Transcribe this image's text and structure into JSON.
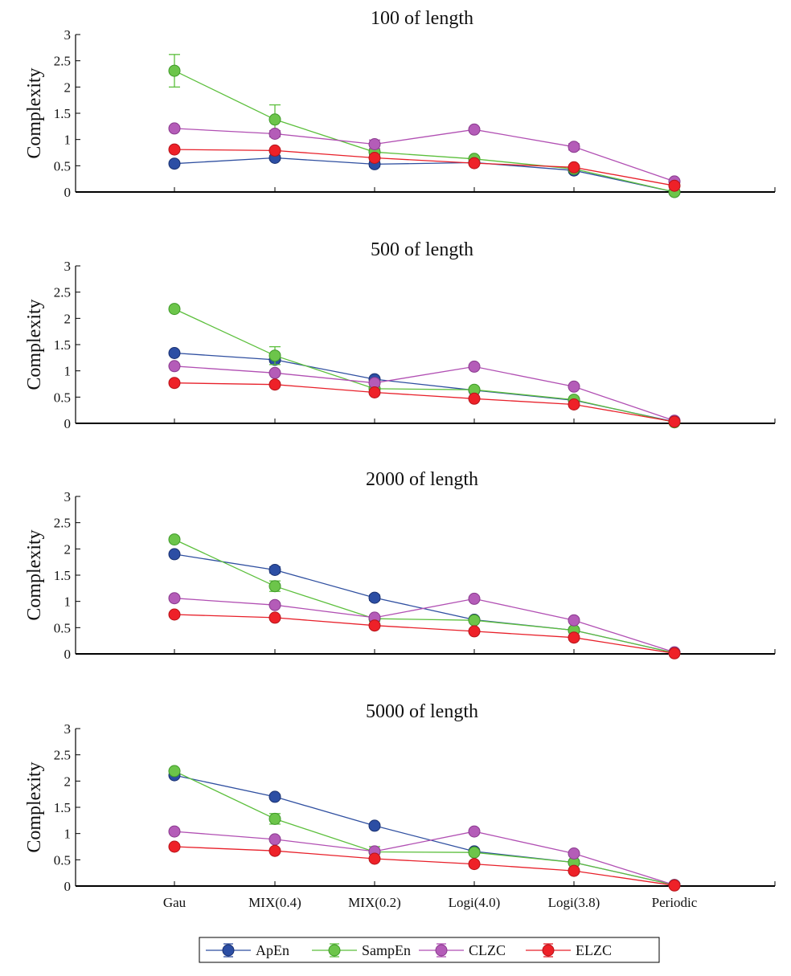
{
  "chart_data": [
    {
      "type": "line",
      "title": "100 of length",
      "ylabel": "Complexity",
      "xlabel": "",
      "categories": [
        "Gau",
        "MIX(0.4)",
        "MIX(0.2)",
        "Logi(4.0)",
        "Logi(3.8)",
        "Periodic"
      ],
      "ylim": [
        0,
        3
      ],
      "yticks": [
        "0",
        "0.5",
        "1",
        "1.5",
        "2",
        "2.5",
        "3"
      ],
      "series": [
        {
          "name": "ApEn",
          "values": [
            0.54,
            0.65,
            0.53,
            0.56,
            0.41,
            0.0
          ],
          "errors": [
            0.03,
            0.04,
            0.05,
            0.03,
            0.04,
            0.0
          ]
        },
        {
          "name": "SampEn",
          "values": [
            2.31,
            1.38,
            0.76,
            0.63,
            0.44,
            0.0
          ],
          "errors": [
            0.31,
            0.28,
            0.05,
            0.04,
            0.04,
            0.0
          ]
        },
        {
          "name": "CLZC",
          "values": [
            1.21,
            1.11,
            0.91,
            1.19,
            0.86,
            0.2
          ],
          "errors": [
            0.04,
            0.06,
            0.08,
            0.04,
            0.06,
            0.02
          ]
        },
        {
          "name": "ELZC",
          "values": [
            0.81,
            0.79,
            0.65,
            0.55,
            0.47,
            0.12
          ],
          "errors": [
            0.02,
            0.03,
            0.03,
            0.02,
            0.02,
            0.02
          ]
        }
      ]
    },
    {
      "type": "line",
      "title": "500 of length",
      "ylabel": "Complexity",
      "xlabel": "",
      "categories": [
        "Gau",
        "MIX(0.4)",
        "MIX(0.2)",
        "Logi(4.0)",
        "Logi(3.8)",
        "Periodic"
      ],
      "ylim": [
        0,
        3
      ],
      "yticks": [
        "0",
        "0.5",
        "1",
        "1.5",
        "2",
        "2.5",
        "3"
      ],
      "series": [
        {
          "name": "ApEn",
          "values": [
            1.34,
            1.21,
            0.84,
            0.63,
            0.44,
            0.03
          ],
          "errors": [
            0.02,
            0.04,
            0.03,
            0.02,
            0.02,
            0.0
          ]
        },
        {
          "name": "SampEn",
          "values": [
            2.18,
            1.29,
            0.66,
            0.64,
            0.45,
            0.02
          ],
          "errors": [
            0.03,
            0.17,
            0.03,
            0.02,
            0.02,
            0.0
          ]
        },
        {
          "name": "CLZC",
          "values": [
            1.09,
            0.96,
            0.77,
            1.08,
            0.7,
            0.05
          ],
          "errors": [
            0.02,
            0.03,
            0.03,
            0.02,
            0.02,
            0.0
          ]
        },
        {
          "name": "ELZC",
          "values": [
            0.77,
            0.74,
            0.59,
            0.47,
            0.36,
            0.03
          ],
          "errors": [
            0.01,
            0.02,
            0.02,
            0.01,
            0.01,
            0.0
          ]
        }
      ]
    },
    {
      "type": "line",
      "title": "2000 of length",
      "ylabel": "Complexity",
      "xlabel": "",
      "categories": [
        "Gau",
        "MIX(0.4)",
        "MIX(0.2)",
        "Logi(4.0)",
        "Logi(3.8)",
        "Periodic"
      ],
      "ylim": [
        0,
        3
      ],
      "yticks": [
        "0",
        "0.5",
        "1",
        "1.5",
        "2",
        "2.5",
        "3"
      ],
      "series": [
        {
          "name": "ApEn",
          "values": [
            1.9,
            1.6,
            1.07,
            0.65,
            0.45,
            0.02
          ],
          "errors": [
            0.02,
            0.06,
            0.05,
            0.01,
            0.01,
            0.0
          ]
        },
        {
          "name": "SampEn",
          "values": [
            2.18,
            1.29,
            0.67,
            0.64,
            0.45,
            0.02
          ],
          "errors": [
            0.02,
            0.1,
            0.05,
            0.01,
            0.01,
            0.0
          ]
        },
        {
          "name": "CLZC",
          "values": [
            1.06,
            0.93,
            0.69,
            1.05,
            0.64,
            0.03
          ],
          "errors": [
            0.01,
            0.02,
            0.02,
            0.01,
            0.01,
            0.0
          ]
        },
        {
          "name": "ELZC",
          "values": [
            0.75,
            0.69,
            0.54,
            0.43,
            0.31,
            0.01
          ],
          "errors": [
            0.01,
            0.01,
            0.01,
            0.01,
            0.01,
            0.0
          ]
        }
      ]
    },
    {
      "type": "line",
      "title": "5000 of length",
      "ylabel": "Complexity",
      "xlabel": "",
      "categories": [
        "Gau",
        "MIX(0.4)",
        "MIX(0.2)",
        "Logi(4.0)",
        "Logi(3.8)",
        "Periodic"
      ],
      "ylim": [
        0,
        3
      ],
      "yticks": [
        "0",
        "0.5",
        "1",
        "1.5",
        "2",
        "2.5",
        "3"
      ],
      "series": [
        {
          "name": "ApEn",
          "values": [
            2.11,
            1.7,
            1.15,
            0.66,
            0.45,
            0.02
          ],
          "errors": [
            0.02,
            0.04,
            0.04,
            0.01,
            0.01,
            0.0
          ]
        },
        {
          "name": "SampEn",
          "values": [
            2.19,
            1.28,
            0.65,
            0.64,
            0.45,
            0.02
          ],
          "errors": [
            0.02,
            0.1,
            0.1,
            0.01,
            0.01,
            0.0
          ]
        },
        {
          "name": "CLZC",
          "values": [
            1.04,
            0.89,
            0.66,
            1.04,
            0.62,
            0.02
          ],
          "errors": [
            0.01,
            0.02,
            0.02,
            0.01,
            0.01,
            0.0
          ]
        },
        {
          "name": "ELZC",
          "values": [
            0.75,
            0.67,
            0.52,
            0.42,
            0.29,
            0.01
          ],
          "errors": [
            0.01,
            0.01,
            0.01,
            0.01,
            0.01,
            0.0
          ]
        }
      ]
    }
  ],
  "legend": {
    "position": "bottom-center",
    "entries": [
      "ApEn",
      "SampEn",
      "CLZC",
      "ELZC"
    ]
  },
  "colors": {
    "ApEn": {
      "line": "#2f4fa0",
      "fill": "#2c4ea4",
      "stroke": "#1a3170"
    },
    "SampEn": {
      "line": "#5cbf3c",
      "fill": "#6cc54a",
      "stroke": "#3f9a28"
    },
    "CLZC": {
      "line": "#b14fb3",
      "fill": "#b45cb8",
      "stroke": "#8a3a8e"
    },
    "ELZC": {
      "line": "#e8202a",
      "fill": "#ee2128",
      "stroke": "#b5141b"
    }
  }
}
